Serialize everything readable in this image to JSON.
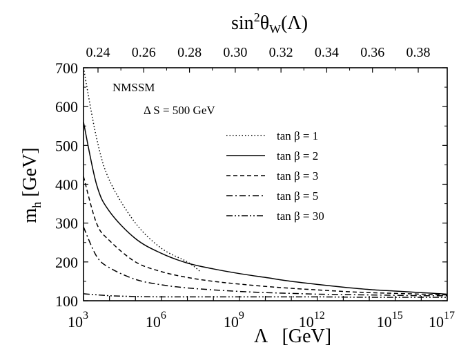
{
  "chart_data": {
    "type": "line",
    "title": "",
    "xlabel": "Λ   [GeV]",
    "ylabel": "m_h [GeV]",
    "x_scale": "log10",
    "xlim_log10": [
      3,
      17
    ],
    "ylim": [
      100,
      700
    ],
    "x_tick_exponents": [
      3,
      6,
      9,
      12,
      15,
      17
    ],
    "y_ticks": [
      100,
      200,
      300,
      400,
      500,
      600,
      700
    ],
    "top_axis": {
      "label": "sin²θ_W(Λ)",
      "tick_labels": [
        "0.24",
        "0.26",
        "0.28",
        "0.30",
        "0.32",
        "0.34",
        "0.36",
        "0.38"
      ]
    },
    "annotations": {
      "model": "NMSSM",
      "delta_s_label": "Δ S = 500 GeV"
    },
    "legend_position": "right-middle",
    "series": [
      {
        "name": "tan β = 1",
        "style": "dotted",
        "x_log10": [
          3.0,
          3.5,
          4.0,
          5.0,
          6.0,
          7.0,
          7.5
        ],
        "values": [
          700,
          520,
          410,
          300,
          235,
          200,
          175
        ]
      },
      {
        "name": "tan β = 2",
        "style": "solid",
        "x_log10": [
          3.0,
          3.5,
          4.0,
          5.0,
          6.0,
          7.0,
          8.0,
          9.0,
          10.0,
          11.0,
          12.0,
          13.0,
          14.0,
          15.0,
          16.0,
          17.0
        ],
        "values": [
          560,
          400,
          330,
          260,
          222,
          197,
          182,
          170,
          160,
          150,
          142,
          135,
          129,
          125,
          121,
          117
        ]
      },
      {
        "name": "tan β = 3",
        "style": "dashed",
        "x_log10": [
          3.0,
          3.5,
          4.0,
          5.0,
          6.0,
          7.0,
          8.0,
          9.0,
          10.0,
          11.0,
          12.0,
          13.0,
          14.0,
          15.0,
          16.0,
          17.0
        ],
        "values": [
          420,
          300,
          255,
          200,
          175,
          160,
          150,
          143,
          137,
          132,
          128,
          124,
          121,
          119,
          117,
          115
        ]
      },
      {
        "name": "tan β = 5",
        "style": "dashdot",
        "x_log10": [
          3.0,
          3.5,
          4.0,
          5.0,
          6.0,
          7.0,
          8.0,
          9.0,
          10.0,
          11.0,
          12.0,
          13.0,
          14.0,
          15.0,
          16.0,
          17.0
        ],
        "values": [
          290,
          215,
          185,
          155,
          141,
          133,
          128,
          124,
          121,
          119,
          117,
          116,
          115,
          114,
          113,
          113
        ]
      },
      {
        "name": "tan β = 30",
        "style": "dashdotdot",
        "x_log10": [
          3.0,
          4.0,
          5.0,
          6.0,
          7.0,
          8.0,
          10.0,
          12.0,
          14.0,
          17.0
        ],
        "values": [
          118,
          113,
          111,
          110,
          110,
          110,
          110,
          110,
          109,
          109
        ]
      }
    ]
  }
}
